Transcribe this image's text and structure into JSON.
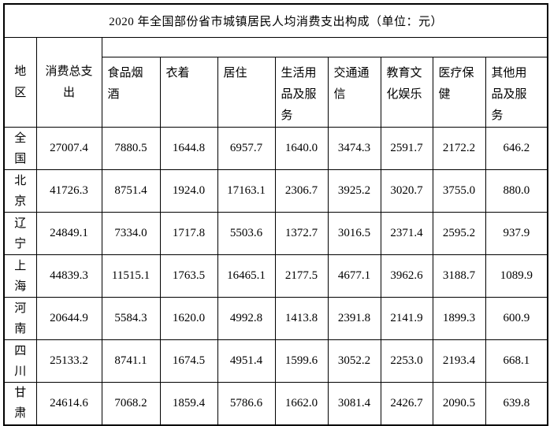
{
  "title": "2020 年全国部份省市城镇居民人均消费支出构成（单位：元）",
  "table": {
    "region_header": "地区",
    "total_header": "消费总支出",
    "category_headers": [
      "食品烟酒",
      "衣着",
      "居住",
      "生活用品及服务",
      "交通通信",
      "教育文化娱乐",
      "医疗保健",
      "其他用品及服务"
    ],
    "rows": [
      {
        "region": "全国",
        "values": [
          "27007.4",
          "7880.5",
          "1644.8",
          "6957.7",
          "1640.0",
          "3474.3",
          "2591.7",
          "2172.2",
          "646.2"
        ]
      },
      {
        "region": "北京",
        "values": [
          "41726.3",
          "8751.4",
          "1924.0",
          "17163.1",
          "2306.7",
          "3925.2",
          "3020.7",
          "3755.0",
          "880.0"
        ]
      },
      {
        "region": "辽宁",
        "values": [
          "24849.1",
          "7334.0",
          "1717.8",
          "5503.6",
          "1372.7",
          "3016.5",
          "2371.4",
          "2595.2",
          "937.9"
        ]
      },
      {
        "region": "上海",
        "values": [
          "44839.3",
          "11515.1",
          "1763.5",
          "16465.1",
          "2177.5",
          "4677.1",
          "3962.6",
          "3188.7",
          "1089.9"
        ]
      },
      {
        "region": "河南",
        "values": [
          "20644.9",
          "5584.3",
          "1620.0",
          "4992.8",
          "1413.8",
          "2391.8",
          "2141.9",
          "1899.3",
          "600.9"
        ]
      },
      {
        "region": "四川",
        "values": [
          "25133.2",
          "8741.1",
          "1674.5",
          "4951.4",
          "1599.6",
          "3052.2",
          "2253.0",
          "2193.4",
          "668.1"
        ]
      },
      {
        "region": "甘肃",
        "values": [
          "24614.6",
          "7068.2",
          "1859.4",
          "5786.6",
          "1662.0",
          "3081.4",
          "2426.7",
          "2090.5",
          "639.8"
        ]
      }
    ]
  }
}
